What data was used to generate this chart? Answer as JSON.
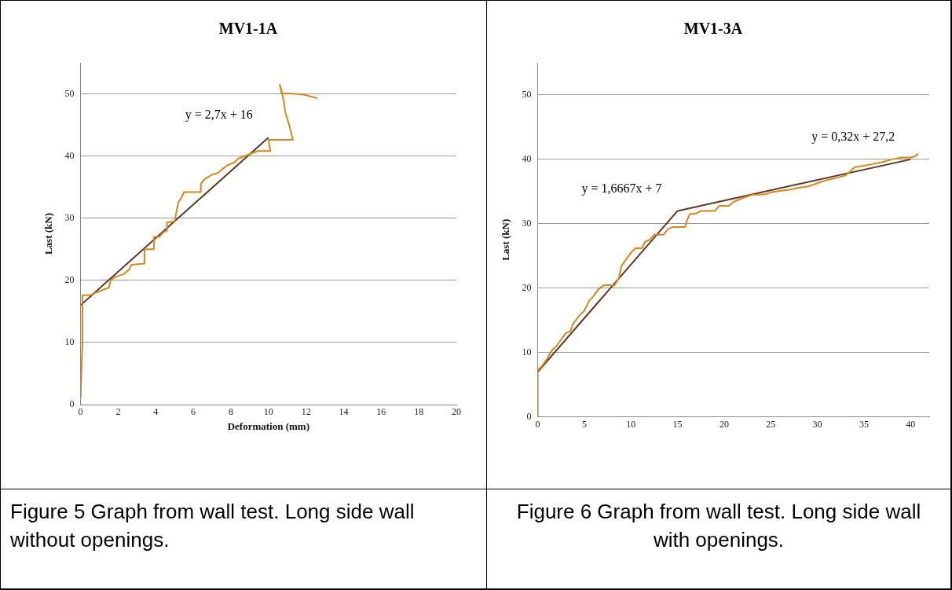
{
  "chart_data": [
    {
      "type": "line",
      "title": "MV1-1A",
      "xlabel": "Deformation (mm)",
      "ylabel": "Last (kN)",
      "xlim": [
        0,
        20
      ],
      "xticks": [
        0,
        2,
        4,
        6,
        8,
        10,
        12,
        14,
        16,
        18,
        20
      ],
      "ylim": [
        0,
        55
      ],
      "yticks": [
        0,
        10,
        20,
        30,
        40,
        50
      ],
      "grid": "y",
      "legend": false,
      "marker": "none",
      "series": [
        {
          "color": "#d9861a",
          "x": [
            0,
            0.05,
            0.1,
            0.1,
            0.1,
            0.5,
            0.8,
            1,
            1.2,
            1.5,
            1.6,
            1.8,
            2.3,
            2.6,
            2.7,
            3.4,
            3.4,
            3.9,
            3.9,
            4.2,
            4.4,
            4.6,
            4.6,
            5.0,
            5.1,
            5.2,
            5.4,
            5.5,
            6.4,
            6.4,
            6.6,
            7,
            7.3,
            7.8,
            8.2,
            8.4,
            9,
            9.4,
            10.1,
            10.0,
            11.3,
            11.1,
            10.9,
            10.8,
            10.7,
            10.6,
            10.7,
            11.5,
            12,
            12.6
          ],
          "values": [
            1,
            6,
            10,
            15,
            17.6,
            17.6,
            18,
            18.2,
            18.5,
            18.8,
            20,
            20.5,
            21,
            21.8,
            22.5,
            22.7,
            25,
            25,
            27,
            27,
            27.7,
            28,
            29.3,
            29.5,
            31,
            32.5,
            33.5,
            34.2,
            34.2,
            35.5,
            36.3,
            37,
            37.3,
            38.5,
            39,
            39.6,
            40.3,
            40.8,
            40.8,
            42.6,
            42.6,
            45,
            47,
            49,
            50.5,
            51.5,
            50.1,
            50,
            49.8,
            49.3
          ]
        },
        {
          "type": "line",
          "color": "#5a3826",
          "x": [
            0,
            10
          ],
          "values": [
            16,
            43
          ]
        }
      ],
      "annotations": [
        "y = 2,7x + 16",
        "Figure 5 Graph from wall test. Long side wall without openings."
      ]
    },
    {
      "type": "line",
      "title": "MV1-3A",
      "ylabel": "Last (kN)",
      "xlim": [
        0,
        42
      ],
      "xticks": [
        0,
        5,
        10,
        15,
        20,
        25,
        30,
        35,
        40
      ],
      "ylim": [
        0,
        55
      ],
      "yticks": [
        0,
        10,
        20,
        30,
        40,
        50
      ],
      "grid": "y",
      "legend": false,
      "marker": "none",
      "series": [
        {
          "color": "#d9861a",
          "x": [
            0,
            0,
            0.5,
            1,
            1.5,
            2,
            2.5,
            3,
            3.5,
            3.8,
            4.5,
            5,
            5.5,
            6,
            6.5,
            7,
            7.5,
            8.2,
            8.7,
            9,
            9.5,
            10,
            10.5,
            11.2,
            11.5,
            12,
            12.5,
            13.5,
            14,
            14.5,
            15.8,
            16,
            16.3,
            17,
            17.5,
            19,
            19.5,
            20.5,
            21,
            22,
            23,
            24.5,
            25,
            26,
            27,
            28,
            29,
            30,
            31,
            32,
            33,
            33.5,
            34,
            35,
            36,
            37,
            38,
            39,
            40,
            40.5,
            40.8
          ],
          "values": [
            0,
            7.2,
            8,
            9,
            10.3,
            11,
            12,
            13,
            13.3,
            14.5,
            15.8,
            16.5,
            18,
            18.8,
            19.8,
            20.4,
            20.5,
            20.4,
            21.5,
            23.5,
            24.5,
            25.5,
            26.2,
            26.2,
            27.2,
            27.5,
            28.3,
            28.3,
            29.2,
            29.5,
            29.5,
            30.5,
            31.5,
            31.6,
            32,
            32,
            32.8,
            32.8,
            33.4,
            34,
            34.5,
            34.6,
            34.9,
            35.1,
            35.3,
            35.6,
            35.8,
            36.3,
            36.8,
            37.1,
            37.5,
            38.1,
            38.8,
            39,
            39.3,
            39.6,
            40,
            40.3,
            40.3,
            40.5,
            40.9
          ]
        },
        {
          "type": "line",
          "color": "#5a3826",
          "x": [
            0,
            15
          ],
          "values": [
            7,
            32
          ]
        },
        {
          "type": "line",
          "color": "#5a3826",
          "x": [
            15,
            40
          ],
          "values": [
            32,
            40
          ]
        }
      ],
      "annotations": [
        "y = 1,6667x + 7",
        "y = 0,32x + 27,2",
        "Figure 6 Graph from wall test. Long side wall with openings."
      ]
    }
  ]
}
